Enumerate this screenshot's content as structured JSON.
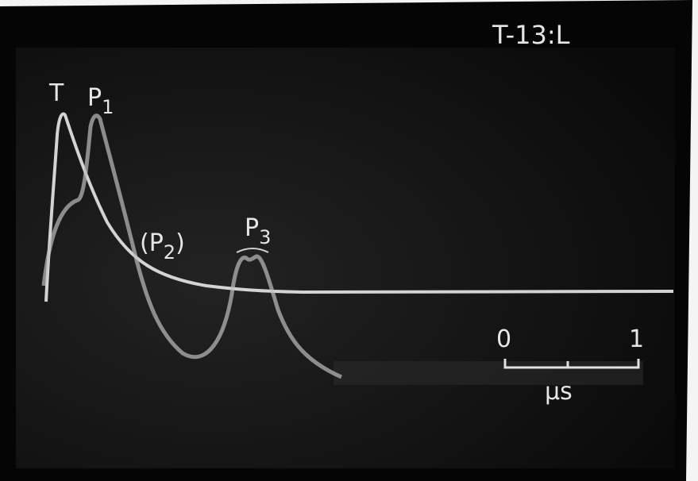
{
  "title": "T-13:L",
  "peak_labels": [
    {
      "main": "T"
    },
    {
      "main": "P",
      "sub": "1"
    },
    {
      "main": "(P",
      "sub": "2",
      "end": ")"
    },
    {
      "main": "P",
      "sub": "3"
    }
  ],
  "scale_bar": {
    "start": "0",
    "end": "1",
    "unit": "μs"
  }
}
